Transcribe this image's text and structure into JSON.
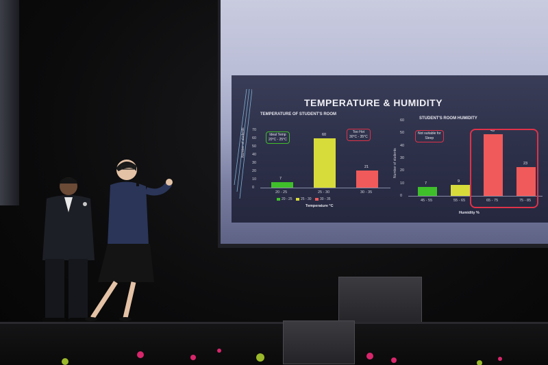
{
  "slide": {
    "title": "TEMPERATURE & HUMIDITY",
    "left_chart": {
      "subtitle": "TEMPERATURE OF STUDENT'S ROOM",
      "y_axis_label": "Number of students",
      "y_ticks": [
        "70",
        "60",
        "50",
        "40",
        "30",
        "20",
        "10",
        "0"
      ],
      "x_label": "Temperature °C",
      "categories": [
        "20 - 25",
        "25 - 30",
        "30 - 35"
      ],
      "values": [
        7,
        60,
        21
      ],
      "value_labels": [
        "7",
        "60",
        "21"
      ],
      "colors": [
        "#3fbf2a",
        "#d8dc3a",
        "#f05a5a"
      ],
      "note_ideal": {
        "line1": "Ideal Temp",
        "line2": "20°C - 25°C"
      },
      "note_hot": {
        "line1": "Too Hot",
        "line2": "30°C - 35°C"
      },
      "legend": [
        "20 - 25",
        "25 - 30",
        "30 - 35"
      ]
    },
    "right_chart": {
      "subtitle": "STUDENT'S ROOM HUMIDITY",
      "y_axis_label": "Number of students",
      "y_ticks": [
        "60",
        "50",
        "40",
        "30",
        "20",
        "10",
        "0"
      ],
      "x_label": "Humidity %",
      "categories": [
        "45 - 55",
        "55 - 65",
        "65 - 75",
        "75 - 85"
      ],
      "values": [
        7,
        9,
        49,
        23
      ],
      "value_labels": [
        "7",
        "9",
        "49",
        "23"
      ],
      "colors": [
        "#3fbf2a",
        "#d8dc3a",
        "#f05a5a",
        "#f05a5a"
      ],
      "note_sleep": {
        "line1": "Not suitable for",
        "line2": "Sleep"
      }
    }
  },
  "colors": {
    "highlight_box": "#e0324a",
    "ideal_box": "#3fbf2a"
  }
}
